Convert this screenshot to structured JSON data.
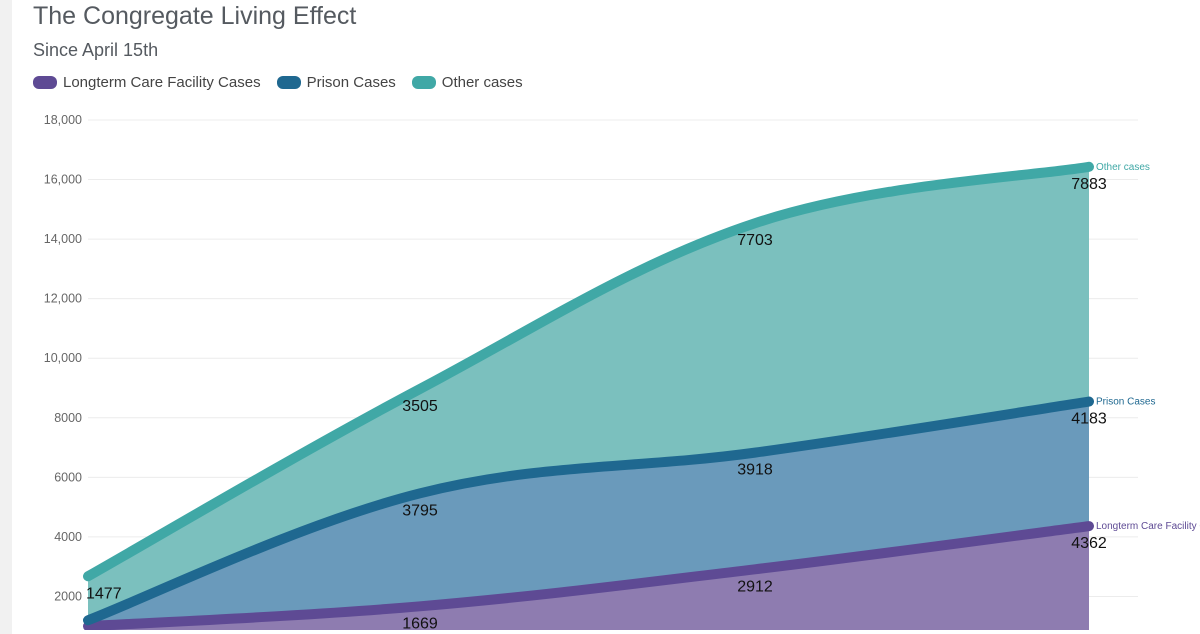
{
  "chart_data": {
    "type": "area",
    "title": "The Congregate Living Effect",
    "subtitle": "Since April 15th",
    "x": [
      "",
      "",
      "",
      ""
    ],
    "ylim": [
      0,
      18000
    ],
    "yticks": [
      "2000",
      "4000",
      "6000",
      "8000",
      "10,000",
      "12,000",
      "14,000",
      "16,000",
      "18,000"
    ],
    "grid": true,
    "legend_position": "top-left",
    "stacked": true,
    "series": [
      {
        "name": "Longterm Care Facility Cases",
        "end_label": "Longterm Care Facility C",
        "values": [
          1000,
          1669,
          2912,
          4362
        ],
        "labels": [
          "",
          "1669",
          "2912",
          "4362"
        ],
        "color": "#5e4a94",
        "fill": "#8e7cb0"
      },
      {
        "name": "Prison Cases",
        "end_label": "Prison Cases",
        "values": [
          200,
          3795,
          3918,
          4183
        ],
        "labels": [
          "",
          "3795",
          "3918",
          "4183"
        ],
        "color": "#1f6890",
        "fill": "#6a9abb"
      },
      {
        "name": "Other cases",
        "end_label": "Other cases",
        "values": [
          1477,
          3505,
          7703,
          7883
        ],
        "labels": [
          "1477",
          "3505",
          "7703",
          "7883"
        ],
        "color": "#40a8a6",
        "fill": "#7bc0be"
      }
    ]
  }
}
